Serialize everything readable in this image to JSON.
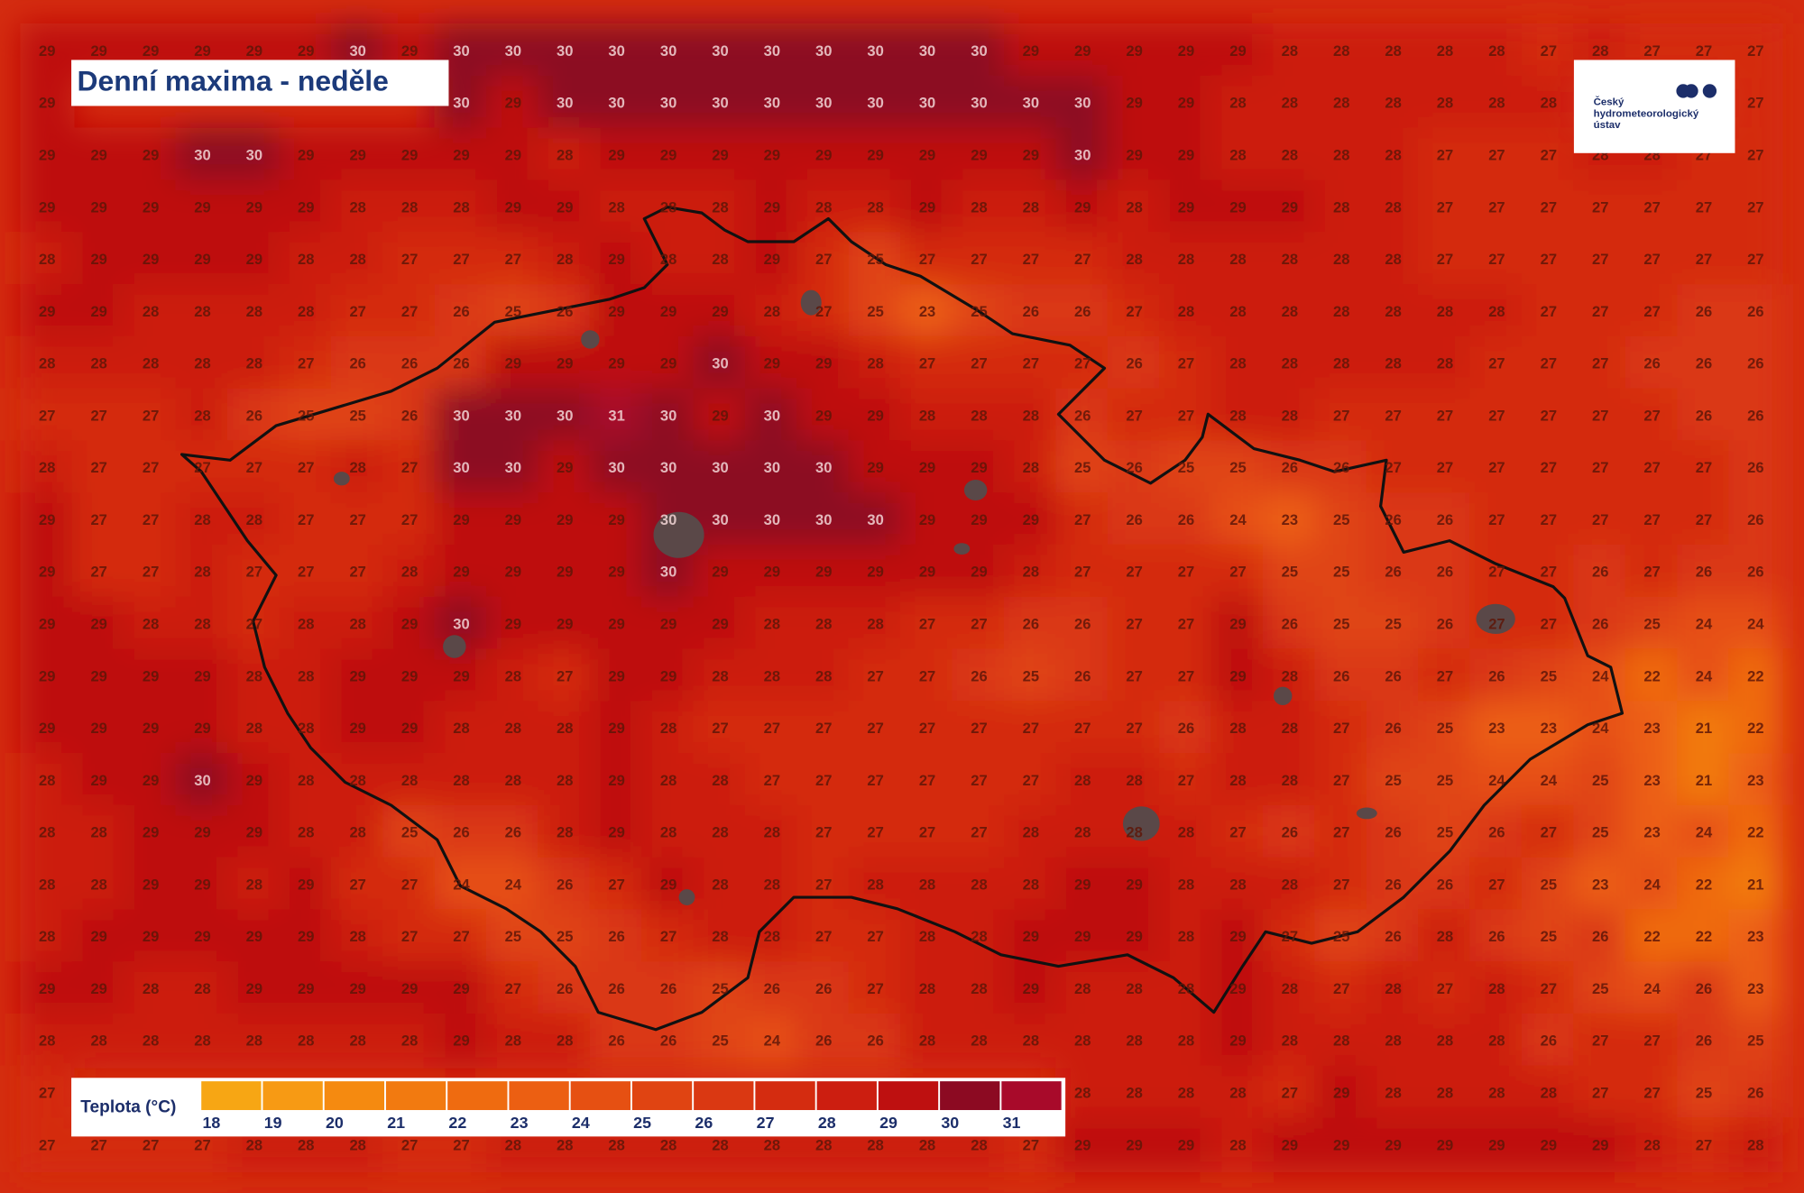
{
  "title": "Denní maxima - neděle",
  "logo": [
    "Český",
    "hydrometeorologický",
    "ústav"
  ],
  "legend": {
    "label": "Teplota (°C)",
    "ticks": [
      18,
      19,
      20,
      21,
      22,
      23,
      24,
      25,
      26,
      27,
      28,
      29,
      30,
      31
    ],
    "colors": [
      "#f7a614",
      "#f79a14",
      "#f58a10",
      "#f27a10",
      "#ef6b10",
      "#ec5f12",
      "#e65012",
      "#e04412",
      "#da3812",
      "#d42c10",
      "#cc1e10",
      "#be1010",
      "#8c0a22",
      "#a80a2a"
    ]
  },
  "grid": {
    "values": [
      [
        29,
        29,
        29,
        29,
        29,
        29,
        30,
        29,
        30,
        30,
        30,
        30,
        30,
        30,
        30,
        30,
        30,
        30,
        30,
        29,
        29,
        29,
        29,
        29,
        28,
        28,
        28,
        28,
        28,
        27,
        28,
        27,
        27,
        27
      ],
      [
        29,
        null,
        null,
        null,
        null,
        null,
        null,
        null,
        30,
        29,
        30,
        30,
        30,
        30,
        30,
        30,
        30,
        30,
        30,
        30,
        30,
        29,
        29,
        28,
        28,
        28,
        28,
        28,
        28,
        28,
        null,
        null,
        null,
        27
      ],
      [
        29,
        29,
        29,
        30,
        30,
        29,
        29,
        29,
        29,
        29,
        28,
        29,
        29,
        29,
        29,
        29,
        29,
        29,
        29,
        29,
        30,
        29,
        29,
        28,
        28,
        28,
        28,
        27,
        27,
        27,
        28,
        28,
        27,
        27
      ],
      [
        29,
        29,
        29,
        29,
        29,
        29,
        28,
        28,
        28,
        29,
        29,
        28,
        28,
        28,
        29,
        28,
        28,
        29,
        28,
        28,
        29,
        28,
        29,
        29,
        29,
        28,
        28,
        27,
        27,
        27,
        27,
        27,
        27,
        27
      ],
      [
        28,
        29,
        29,
        29,
        29,
        28,
        28,
        27,
        27,
        27,
        28,
        29,
        28,
        28,
        29,
        27,
        25,
        27,
        27,
        27,
        27,
        28,
        28,
        28,
        28,
        28,
        28,
        27,
        27,
        27,
        27,
        27,
        27,
        27
      ],
      [
        29,
        29,
        28,
        28,
        28,
        28,
        27,
        27,
        26,
        25,
        26,
        29,
        29,
        29,
        28,
        27,
        25,
        23,
        25,
        26,
        26,
        27,
        28,
        28,
        28,
        28,
        28,
        28,
        28,
        27,
        27,
        27,
        26,
        26
      ],
      [
        28,
        28,
        28,
        28,
        28,
        27,
        26,
        26,
        26,
        29,
        29,
        29,
        29,
        30,
        29,
        29,
        28,
        27,
        27,
        27,
        27,
        26,
        27,
        28,
        28,
        28,
        28,
        28,
        27,
        27,
        27,
        26,
        26,
        26
      ],
      [
        27,
        27,
        27,
        28,
        26,
        25,
        25,
        26,
        30,
        30,
        30,
        31,
        30,
        29,
        30,
        29,
        29,
        28,
        28,
        28,
        26,
        27,
        27,
        28,
        28,
        27,
        27,
        27,
        27,
        27,
        27,
        27,
        26,
        26
      ],
      [
        28,
        27,
        27,
        27,
        27,
        27,
        28,
        27,
        30,
        30,
        29,
        30,
        30,
        30,
        30,
        30,
        29,
        29,
        29,
        28,
        25,
        26,
        25,
        25,
        26,
        26,
        27,
        27,
        27,
        27,
        27,
        27,
        27,
        26
      ],
      [
        29,
        27,
        27,
        28,
        28,
        27,
        27,
        27,
        29,
        29,
        29,
        29,
        30,
        30,
        30,
        30,
        30,
        29,
        29,
        29,
        27,
        26,
        26,
        24,
        23,
        25,
        26,
        26,
        27,
        27,
        27,
        27,
        27,
        26
      ],
      [
        29,
        27,
        27,
        28,
        27,
        27,
        27,
        28,
        29,
        29,
        29,
        29,
        30,
        29,
        29,
        29,
        29,
        29,
        29,
        28,
        27,
        27,
        27,
        27,
        25,
        25,
        26,
        26,
        27,
        27,
        26,
        27,
        26,
        26
      ],
      [
        29,
        29,
        28,
        28,
        27,
        28,
        28,
        29,
        30,
        29,
        29,
        29,
        29,
        29,
        28,
        28,
        28,
        27,
        27,
        26,
        26,
        27,
        27,
        29,
        26,
        25,
        25,
        26,
        27,
        27,
        26,
        25,
        24,
        24
      ],
      [
        29,
        29,
        29,
        29,
        28,
        28,
        29,
        29,
        29,
        28,
        27,
        29,
        29,
        28,
        28,
        28,
        27,
        27,
        26,
        25,
        26,
        27,
        27,
        29,
        28,
        26,
        26,
        27,
        26,
        25,
        24,
        22,
        24,
        22
      ],
      [
        29,
        29,
        29,
        29,
        28,
        28,
        29,
        29,
        28,
        28,
        28,
        29,
        28,
        27,
        27,
        27,
        27,
        27,
        27,
        27,
        27,
        27,
        26,
        28,
        28,
        27,
        26,
        25,
        23,
        23,
        24,
        23,
        21,
        22
      ],
      [
        28,
        29,
        29,
        30,
        29,
        28,
        28,
        28,
        28,
        28,
        28,
        29,
        28,
        28,
        27,
        27,
        27,
        27,
        27,
        27,
        28,
        28,
        27,
        28,
        28,
        27,
        25,
        25,
        24,
        24,
        25,
        23,
        21,
        23
      ],
      [
        28,
        28,
        29,
        29,
        29,
        28,
        28,
        25,
        26,
        26,
        28,
        29,
        28,
        28,
        28,
        27,
        27,
        27,
        27,
        28,
        28,
        28,
        28,
        27,
        26,
        27,
        26,
        25,
        26,
        27,
        25,
        23,
        24,
        22
      ],
      [
        28,
        28,
        29,
        29,
        28,
        29,
        27,
        27,
        24,
        24,
        26,
        27,
        29,
        28,
        28,
        27,
        28,
        28,
        28,
        28,
        29,
        29,
        28,
        28,
        28,
        27,
        26,
        26,
        27,
        25,
        23,
        24,
        22,
        21
      ],
      [
        28,
        29,
        29,
        29,
        29,
        29,
        28,
        27,
        27,
        25,
        25,
        26,
        27,
        28,
        28,
        27,
        27,
        28,
        28,
        29,
        29,
        29,
        28,
        29,
        27,
        25,
        26,
        28,
        26,
        25,
        26,
        22,
        22,
        23
      ],
      [
        29,
        29,
        28,
        28,
        29,
        29,
        29,
        29,
        29,
        27,
        26,
        26,
        26,
        25,
        26,
        26,
        27,
        28,
        28,
        29,
        28,
        28,
        28,
        29,
        28,
        27,
        28,
        27,
        28,
        27,
        25,
        24,
        26,
        23
      ],
      [
        28,
        28,
        28,
        28,
        28,
        28,
        28,
        28,
        29,
        28,
        28,
        26,
        26,
        25,
        24,
        26,
        26,
        28,
        28,
        28,
        28,
        28,
        28,
        29,
        28,
        28,
        28,
        28,
        28,
        26,
        27,
        27,
        26,
        25
      ],
      [
        27,
        null,
        null,
        null,
        null,
        null,
        null,
        null,
        null,
        null,
        null,
        null,
        null,
        null,
        null,
        null,
        null,
        null,
        null,
        null,
        28,
        28,
        28,
        28,
        27,
        29,
        28,
        28,
        28,
        28,
        27,
        27,
        25,
        26
      ],
      [
        27,
        27,
        27,
        27,
        28,
        28,
        28,
        27,
        27,
        28,
        28,
        28,
        28,
        28,
        28,
        28,
        28,
        28,
        28,
        27,
        29,
        29,
        29,
        28,
        29,
        29,
        29,
        29,
        29,
        29,
        29,
        28,
        27,
        28
      ]
    ]
  }
}
